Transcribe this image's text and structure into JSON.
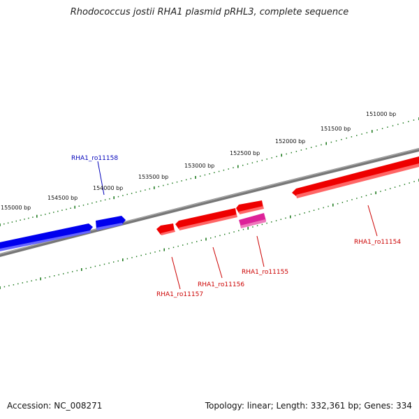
{
  "title": "Rhodococcus jostii RHA1 plasmid pRHL3, complete sequence",
  "footer": {
    "accession": "Accession: NC_008271",
    "summary": "Topology: linear; Length: 332,361 bp; Genes: 334"
  },
  "colors": {
    "forward_strand": "#0000ee",
    "reverse_strand": "#ee0000",
    "reverse_strand_alt": "#dd2299",
    "backbone": "#777777",
    "ruler": "#1e7a1e",
    "forward_label": "#0000bb",
    "reverse_label": "#cc0000"
  },
  "scale_ticks": [
    {
      "bp": 155000,
      "label": "155000 bp"
    },
    {
      "bp": 154500,
      "label": "154500 bp"
    },
    {
      "bp": 154000,
      "label": "154000 bp"
    },
    {
      "bp": 153500,
      "label": "153500 bp"
    },
    {
      "bp": 153000,
      "label": "153000 bp"
    },
    {
      "bp": 152500,
      "label": "152500 bp"
    },
    {
      "bp": 152000,
      "label": "152000 bp"
    },
    {
      "bp": 151500,
      "label": "151500 bp"
    },
    {
      "bp": 151000,
      "label": "151000 bp"
    }
  ],
  "gene_labels": [
    {
      "id": "RHA1_ro11158",
      "strand": "forward"
    },
    {
      "id": "RHA1_ro11154",
      "strand": "reverse"
    },
    {
      "id": "RHA1_ro11155",
      "strand": "reverse"
    },
    {
      "id": "RHA1_ro11156",
      "strand": "reverse"
    },
    {
      "id": "RHA1_ro11157",
      "strand": "reverse"
    }
  ]
}
